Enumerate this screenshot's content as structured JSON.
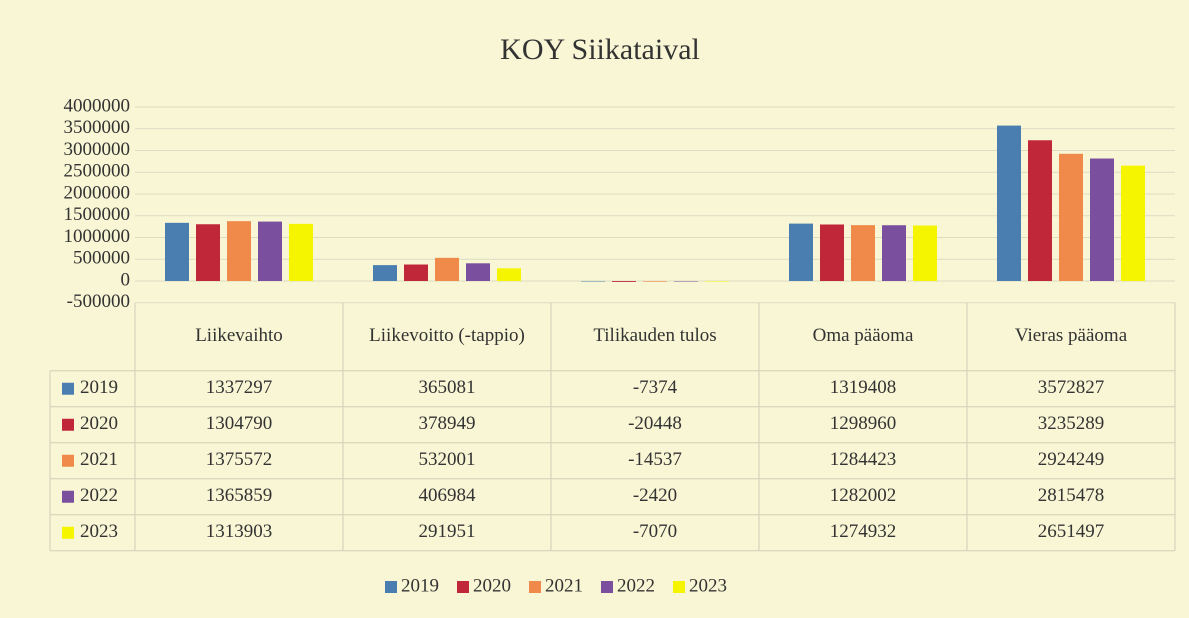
{
  "chart_data": {
    "type": "bar",
    "title": "KOY Siikataival",
    "categories": [
      "Liikevaihto",
      "Liikevoitto (-tappio)",
      "Tilikauden tulos",
      "Oma pääoma",
      "Vieras pääoma"
    ],
    "series": [
      {
        "name": "2019",
        "color": "#4a7eb0",
        "values": [
          1337297,
          365081,
          -7374,
          1319408,
          3572827
        ]
      },
      {
        "name": "2020",
        "color": "#c0283a",
        "values": [
          1304790,
          378949,
          -20448,
          1298960,
          3235289
        ]
      },
      {
        "name": "2021",
        "color": "#f08a4b",
        "values": [
          1375572,
          532001,
          -14537,
          1284423,
          2924249
        ]
      },
      {
        "name": "2022",
        "color": "#7a4f9e",
        "values": [
          1365859,
          406984,
          -2420,
          1282002,
          2815478
        ]
      },
      {
        "name": "2023",
        "color": "#f5f500",
        "values": [
          1313903,
          291951,
          -7070,
          1274932,
          2651497
        ]
      }
    ],
    "ylim": [
      -500000,
      4000000
    ],
    "yticks": [
      -500000,
      0,
      500000,
      1000000,
      1500000,
      2000000,
      2500000,
      3000000,
      3500000,
      4000000
    ],
    "grid": true,
    "legend": "bottom",
    "data_table": true
  }
}
